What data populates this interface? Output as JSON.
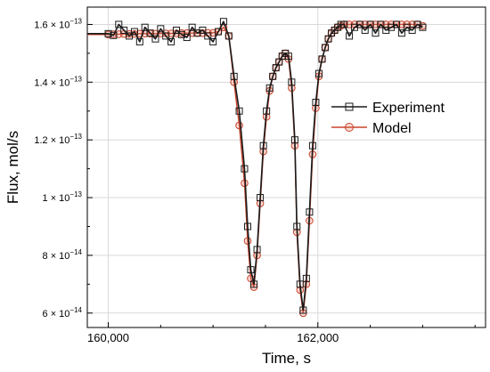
{
  "chart_data": {
    "type": "line",
    "title": "",
    "xlabel": "Time, s",
    "ylabel": "Flux, mol/s",
    "xlim": [
      159800,
      163600
    ],
    "ylim": [
      5.5e-14,
      1.66e-13
    ],
    "x_ticks": [
      160000,
      162000
    ],
    "x_tick_labels": [
      "160,000",
      "162,000"
    ],
    "x_minor_ticks": [
      160500,
      161000,
      161500,
      162500,
      163000,
      163500
    ],
    "y_ticks": [
      6e-14,
      8e-14,
      1e-13,
      1.2e-13,
      1.4e-13,
      1.6e-13
    ],
    "y_tick_labels": [
      {
        "mant": "6 × 10",
        "exp": "−14"
      },
      {
        "mant": "8 × 10",
        "exp": "−14"
      },
      {
        "mant": "1 × 10",
        "exp": "−13"
      },
      {
        "mant": "1.2 × 10",
        "exp": "−13"
      },
      {
        "mant": "1.4 × 10",
        "exp": "−13"
      },
      {
        "mant": "1.6 × 10",
        "exp": "−13"
      }
    ],
    "grid": true,
    "legend_position": "right",
    "series": [
      {
        "name": "Experiment",
        "color": "#1a1a1a",
        "marker": "square",
        "x": [
          160000,
          160050,
          160100,
          160150,
          160200,
          160250,
          160300,
          160350,
          160400,
          160450,
          160500,
          160550,
          160600,
          160650,
          160700,
          160750,
          160800,
          160850,
          160900,
          160950,
          161000,
          161050,
          161100,
          161150,
          161200,
          161250,
          161300,
          161330,
          161360,
          161390,
          161420,
          161450,
          161480,
          161510,
          161540,
          161570,
          161600,
          161630,
          161660,
          161690,
          161720,
          161750,
          161780,
          161800,
          161830,
          161860,
          161890,
          161920,
          161950,
          161980,
          162010,
          162040,
          162070,
          162100,
          162130,
          162160,
          162190,
          162220,
          162250,
          162300,
          162350,
          162400,
          162450,
          162500,
          162550,
          162600,
          162650,
          162700,
          162750,
          162800,
          162850,
          162900,
          162950,
          163000
        ],
        "y": [
          1.568e-13,
          1.562e-13,
          1.6e-13,
          1.58e-13,
          1.56e-13,
          1.575e-13,
          1.54e-13,
          1.59e-13,
          1.57e-13,
          1.55e-13,
          1.585e-13,
          1.56e-13,
          1.54e-13,
          1.58e-13,
          1.565e-13,
          1.555e-13,
          1.59e-13,
          1.57e-13,
          1.58e-13,
          1.56e-13,
          1.54e-13,
          1.575e-13,
          1.61e-13,
          1.56e-13,
          1.42e-13,
          1.3e-13,
          1.1e-13,
          9e-14,
          7.5e-14,
          7e-14,
          8.2e-14,
          1e-13,
          1.18e-13,
          1.3e-13,
          1.38e-13,
          1.42e-13,
          1.45e-13,
          1.47e-13,
          1.49e-13,
          1.5e-13,
          1.49e-13,
          1.4e-13,
          1.2e-13,
          9e-14,
          7e-14,
          6.1e-14,
          7.2e-14,
          9.5e-14,
          1.18e-13,
          1.33e-13,
          1.43e-13,
          1.48e-13,
          1.52e-13,
          1.55e-13,
          1.57e-13,
          1.58e-13,
          1.59e-13,
          1.6e-13,
          1.6e-13,
          1.56e-13,
          1.59e-13,
          1.6e-13,
          1.58e-13,
          1.6e-13,
          1.57e-13,
          1.6e-13,
          1.58e-13,
          1.59e-13,
          1.6e-13,
          1.57e-13,
          1.59e-13,
          1.58e-13,
          1.6e-13,
          1.59e-13
        ]
      },
      {
        "name": "Model",
        "color": "#c8432a",
        "marker": "circle",
        "x": [
          160000,
          160050,
          160100,
          160150,
          160200,
          160250,
          160300,
          160350,
          160400,
          160450,
          160500,
          160550,
          160600,
          160650,
          160700,
          160750,
          160800,
          160850,
          160900,
          160950,
          161000,
          161050,
          161100,
          161150,
          161200,
          161250,
          161300,
          161330,
          161360,
          161390,
          161420,
          161450,
          161480,
          161510,
          161540,
          161570,
          161600,
          161630,
          161660,
          161690,
          161720,
          161750,
          161780,
          161800,
          161830,
          161860,
          161890,
          161920,
          161950,
          161980,
          162010,
          162040,
          162070,
          162100,
          162130,
          162160,
          162190,
          162220,
          162250,
          162300,
          162350,
          162400,
          162450,
          162500,
          162550,
          162600,
          162650,
          162700,
          162750,
          162800,
          162850,
          162900,
          162950,
          163000
        ],
        "y": [
          1.565e-13,
          1.566e-13,
          1.566e-13,
          1.567e-13,
          1.567e-13,
          1.567e-13,
          1.568e-13,
          1.568e-13,
          1.568e-13,
          1.568e-13,
          1.569e-13,
          1.569e-13,
          1.569e-13,
          1.569e-13,
          1.57e-13,
          1.57e-13,
          1.57e-13,
          1.57e-13,
          1.57e-13,
          1.571e-13,
          1.571e-13,
          1.575e-13,
          1.59e-13,
          1.56e-13,
          1.4e-13,
          1.25e-13,
          1.05e-13,
          8.5e-14,
          7.2e-14,
          6.9e-14,
          8e-14,
          9.8e-14,
          1.16e-13,
          1.28e-13,
          1.37e-13,
          1.42e-13,
          1.45e-13,
          1.47e-13,
          1.49e-13,
          1.5e-13,
          1.48e-13,
          1.38e-13,
          1.18e-13,
          8.8e-14,
          6.8e-14,
          6e-14,
          7e-14,
          9.2e-14,
          1.15e-13,
          1.31e-13,
          1.42e-13,
          1.48e-13,
          1.52e-13,
          1.55e-13,
          1.57e-13,
          1.58e-13,
          1.59e-13,
          1.595e-13,
          1.6e-13,
          1.6e-13,
          1.6e-13,
          1.6e-13,
          1.6e-13,
          1.6e-13,
          1.6e-13,
          1.6e-13,
          1.6e-13,
          1.6e-13,
          1.6e-13,
          1.6e-13,
          1.6e-13,
          1.6e-13,
          1.6e-13,
          1.595e-13
        ]
      }
    ]
  }
}
